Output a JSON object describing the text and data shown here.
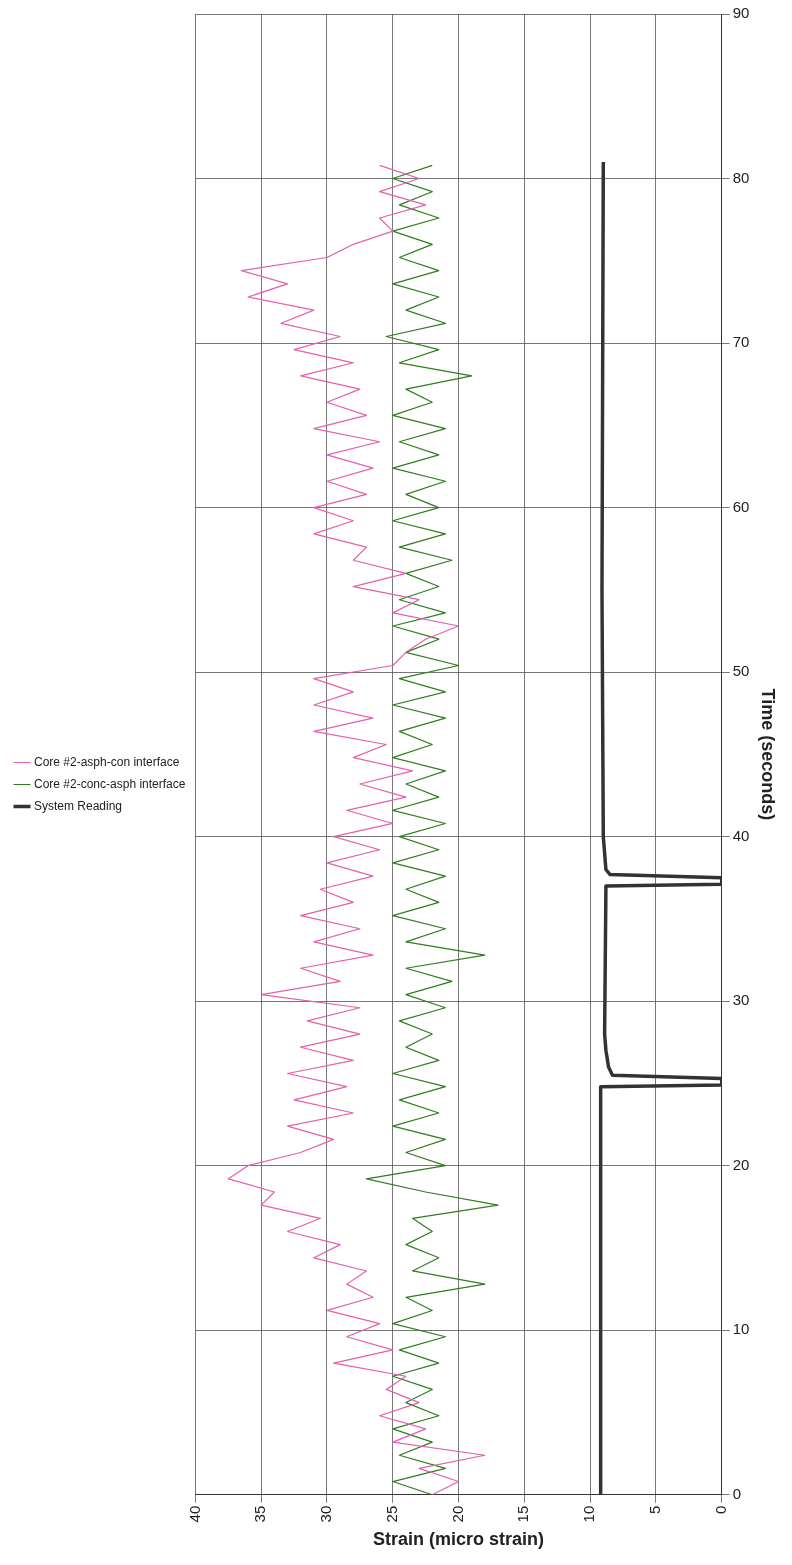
{
  "chart_data": {
    "type": "line",
    "xlabel": "Strain (micro strain)",
    "ylabel": "Time (seconds)",
    "series": [
      {
        "name": "Core #2-asph-con interface",
        "color": "#e55fae",
        "x": [
          22,
          20,
          23,
          18,
          25,
          22.5,
          26,
          23,
          25.5,
          24,
          29.5,
          25,
          28.5,
          26,
          30,
          26.5,
          28.5,
          27,
          31,
          29,
          33,
          30.5,
          35,
          34,
          37.5,
          36,
          32,
          29.5,
          33,
          28,
          32.5,
          28.5,
          33,
          28,
          32,
          27.5,
          31.5,
          27.5,
          35,
          29,
          32,
          26.5,
          31,
          27.5,
          32,
          28,
          30.5,
          26.5,
          30,
          26,
          29.5,
          25,
          28.5,
          24,
          27.5,
          23.5,
          28,
          25.5,
          31,
          26.5,
          31,
          28,
          31,
          25,
          24,
          22.5,
          20,
          25,
          23,
          28,
          24,
          28,
          27,
          31,
          28,
          31,
          27,
          30,
          26.5,
          30,
          26,
          31,
          27,
          30,
          27.5,
          32,
          28,
          32.5,
          29,
          33.5,
          31,
          36,
          33,
          36.5,
          30,
          28,
          25,
          26,
          22.5,
          26,
          23,
          26
        ],
        "values": [
          0,
          0.8,
          1.6,
          2.4,
          3.2,
          4,
          4.8,
          5.6,
          6.4,
          7.2,
          8,
          8.8,
          9.6,
          10.4,
          11.2,
          12,
          12.8,
          13.6,
          14.4,
          15.2,
          16,
          16.8,
          17.6,
          18.4,
          19.2,
          20,
          20.8,
          21.6,
          22.4,
          23.2,
          24,
          24.8,
          25.6,
          26.4,
          27.2,
          28,
          28.8,
          29.6,
          30.4,
          31.2,
          32,
          32.8,
          33.6,
          34.4,
          35.2,
          36,
          36.8,
          37.6,
          38.4,
          39.2,
          40,
          40.8,
          41.6,
          42.4,
          43.2,
          44,
          44.8,
          45.6,
          46.4,
          47.2,
          48,
          48.8,
          49.6,
          50.4,
          51.2,
          52,
          52.8,
          53.6,
          54.4,
          55.2,
          56,
          56.8,
          57.6,
          58.4,
          59.2,
          60,
          60.8,
          61.6,
          62.4,
          63.2,
          64,
          64.8,
          65.6,
          66.4,
          67.2,
          68,
          68.8,
          69.6,
          70.4,
          71.2,
          72,
          72.8,
          73.6,
          74.4,
          75.2,
          76,
          76.8,
          77.6,
          78.4,
          79.2,
          80,
          80.8
        ]
      },
      {
        "name": "Core #2-conc-asph interface",
        "color": "#2e7d1e",
        "x": [
          22,
          25,
          21,
          24.5,
          22,
          25,
          21.5,
          24,
          22,
          25,
          21.5,
          24.5,
          21,
          25,
          22,
          24,
          18,
          23.5,
          21.5,
          24,
          22,
          23.5,
          17,
          22.5,
          27,
          21,
          24,
          21,
          25,
          21.5,
          24.5,
          21,
          25,
          21.5,
          24,
          22,
          24.5,
          21,
          24,
          20.5,
          24,
          18,
          24,
          21,
          25,
          21.5,
          24,
          21,
          25,
          21.5,
          24.5,
          21,
          25,
          21.5,
          24,
          21,
          25,
          22,
          24.5,
          21,
          25,
          21,
          24.5,
          20,
          24,
          21.5,
          25,
          21,
          24.5,
          21.5,
          24,
          20.5,
          24.5,
          21,
          25,
          21.5,
          24,
          21,
          25,
          21.5,
          24.5,
          21,
          25,
          22,
          24,
          19,
          24.5,
          21.5,
          25.5,
          21,
          24,
          21.5,
          25,
          21.5,
          24.5,
          22,
          25,
          21.5,
          24.5,
          22,
          25,
          22
        ],
        "values": [
          0,
          0.8,
          1.6,
          2.4,
          3.2,
          4,
          4.8,
          5.6,
          6.4,
          7.2,
          8,
          8.8,
          9.6,
          10.4,
          11.2,
          12,
          12.8,
          13.6,
          14.4,
          15.2,
          16,
          16.8,
          17.6,
          18.4,
          19.2,
          20,
          20.8,
          21.6,
          22.4,
          23.2,
          24,
          24.8,
          25.6,
          26.4,
          27.2,
          28,
          28.8,
          29.6,
          30.4,
          31.2,
          32,
          32.8,
          33.6,
          34.4,
          35.2,
          36,
          36.8,
          37.6,
          38.4,
          39.2,
          40,
          40.8,
          41.6,
          42.4,
          43.2,
          44,
          44.8,
          45.6,
          46.4,
          47.2,
          48,
          48.8,
          49.6,
          50.4,
          51.2,
          52,
          52.8,
          53.6,
          54.4,
          55.2,
          56,
          56.8,
          57.6,
          58.4,
          59.2,
          60,
          60.8,
          61.6,
          62.4,
          63.2,
          64,
          64.8,
          65.6,
          66.4,
          67.2,
          68,
          68.8,
          69.6,
          70.4,
          71.2,
          72,
          72.8,
          73.6,
          74.4,
          75.2,
          76,
          76.8,
          77.6,
          78.4,
          79.2,
          80,
          80.8
        ]
      },
      {
        "name": "System Reading",
        "color": "#333333",
        "x": [
          9.2,
          9.2,
          0,
          0,
          8.3,
          8.6,
          8.8,
          8.9,
          8.8,
          0,
          0,
          8.5,
          8.8,
          8.9,
          9,
          9.1,
          9
        ],
        "values": [
          0,
          24.8,
          24.9,
          25.3,
          25.5,
          26,
          27,
          28,
          37,
          37.1,
          37.5,
          37.7,
          38,
          39,
          40,
          55,
          81
        ]
      }
    ],
    "xlim": [
      40,
      0
    ],
    "xticks": [
      40,
      35,
      30,
      25,
      20,
      15,
      10,
      5,
      0
    ],
    "ylim": [
      0,
      90
    ],
    "yticks": [
      0,
      10,
      20,
      30,
      40,
      50,
      60,
      70,
      80,
      90
    ],
    "grid": true,
    "legend": "left",
    "marker": "none",
    "line_style": "solid"
  }
}
